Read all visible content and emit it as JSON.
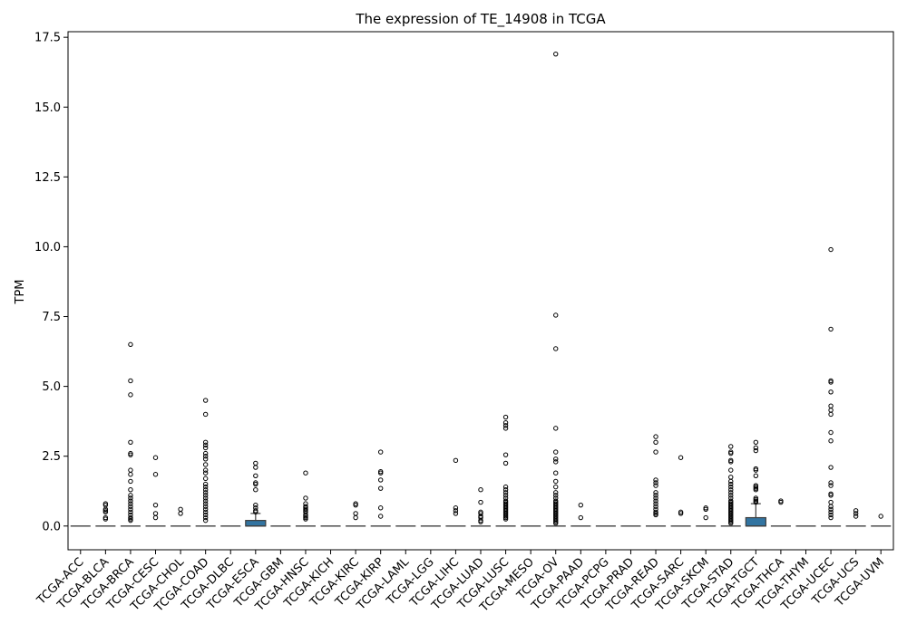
{
  "chart_data": {
    "type": "box",
    "title": "The expression of TE_14908 in TCGA",
    "xlabel": "",
    "ylabel": "TPM",
    "ylim": [
      -0.85,
      17.7
    ],
    "yticks": [
      0.0,
      2.5,
      5.0,
      7.5,
      10.0,
      12.5,
      15.0,
      17.5
    ],
    "ytick_labels": [
      "0.0",
      "2.5",
      "5.0",
      "7.5",
      "10.0",
      "12.5",
      "15.0",
      "17.5"
    ],
    "box_color": "#3274a1",
    "categories": [
      "TCGA-ACC",
      "TCGA-BLCA",
      "TCGA-BRCA",
      "TCGA-CESC",
      "TCGA-CHOL",
      "TCGA-COAD",
      "TCGA-DLBC",
      "TCGA-ESCA",
      "TCGA-GBM",
      "TCGA-HNSC",
      "TCGA-KICH",
      "TCGA-KIRC",
      "TCGA-KIRP",
      "TCGA-LAML",
      "TCGA-LGG",
      "TCGA-LIHC",
      "TCGA-LUAD",
      "TCGA-LUSC",
      "TCGA-MESO",
      "TCGA-OV",
      "TCGA-PAAD",
      "TCGA-PCPG",
      "TCGA-PRAD",
      "TCGA-READ",
      "TCGA-SARC",
      "TCGA-SKCM",
      "TCGA-STAD",
      "TCGA-TGCT",
      "TCGA-THCA",
      "TCGA-THYM",
      "TCGA-UCEC",
      "TCGA-UCS",
      "TCGA-UVM"
    ],
    "boxes": [
      {
        "q1": 0,
        "median": 0,
        "q3": 0,
        "whisker_low": 0,
        "whisker_high": 0,
        "outliers": []
      },
      {
        "q1": 0,
        "median": 0,
        "q3": 0,
        "whisker_low": 0,
        "whisker_high": 0,
        "outliers": [
          0.8,
          0.75,
          0.6,
          0.55,
          0.5,
          0.3,
          0.25
        ]
      },
      {
        "q1": 0,
        "median": 0,
        "q3": 0,
        "whisker_low": 0,
        "whisker_high": 0,
        "outliers": [
          6.5,
          5.2,
          4.7,
          3.0,
          2.6,
          2.55,
          2.0,
          1.85,
          1.6,
          1.3,
          1.1,
          1.0,
          0.9,
          0.8,
          0.7,
          0.6,
          0.5,
          0.4,
          0.3,
          0.25,
          0.2
        ]
      },
      {
        "q1": 0,
        "median": 0,
        "q3": 0,
        "whisker_low": 0,
        "whisker_high": 0,
        "outliers": [
          2.45,
          1.85,
          0.75,
          0.45,
          0.3
        ]
      },
      {
        "q1": 0,
        "median": 0,
        "q3": 0,
        "whisker_low": 0,
        "whisker_high": 0,
        "outliers": [
          0.6,
          0.45
        ]
      },
      {
        "q1": 0,
        "median": 0,
        "q3": 0,
        "whisker_low": 0,
        "whisker_high": 0,
        "outliers": [
          4.5,
          4.0,
          3.0,
          2.9,
          2.8,
          2.6,
          2.5,
          2.4,
          2.2,
          2.0,
          1.9,
          1.7,
          1.5,
          1.4,
          1.3,
          1.2,
          1.1,
          1.0,
          0.9,
          0.8,
          0.7,
          0.6,
          0.5,
          0.4,
          0.3,
          0.2
        ]
      },
      {
        "q1": 0,
        "median": 0,
        "q3": 0,
        "whisker_low": 0,
        "whisker_high": 0,
        "outliers": []
      },
      {
        "q1": 0,
        "median": 0,
        "q3": 0.2,
        "whisker_low": 0,
        "whisker_high": 0.45,
        "outliers": [
          2.25,
          2.1,
          1.8,
          1.55,
          1.5,
          1.3,
          0.75,
          0.65,
          0.55,
          0.5
        ]
      },
      {
        "q1": 0,
        "median": 0,
        "q3": 0,
        "whisker_low": 0,
        "whisker_high": 0,
        "outliers": []
      },
      {
        "q1": 0,
        "median": 0,
        "q3": 0,
        "whisker_low": 0,
        "whisker_high": 0,
        "outliers": [
          1.9,
          1.0,
          0.8,
          0.7,
          0.65,
          0.6,
          0.55,
          0.5,
          0.4,
          0.35,
          0.3,
          0.25
        ]
      },
      {
        "q1": 0,
        "median": 0,
        "q3": 0,
        "whisker_low": 0,
        "whisker_high": 0,
        "outliers": []
      },
      {
        "q1": 0,
        "median": 0,
        "q3": 0,
        "whisker_low": 0,
        "whisker_high": 0,
        "outliers": [
          0.8,
          0.75,
          0.45,
          0.3
        ]
      },
      {
        "q1": 0,
        "median": 0,
        "q3": 0,
        "whisker_low": 0,
        "whisker_high": 0,
        "outliers": [
          2.65,
          1.95,
          1.9,
          1.65,
          1.35,
          0.65,
          0.35
        ]
      },
      {
        "q1": 0,
        "median": 0,
        "q3": 0,
        "whisker_low": 0,
        "whisker_high": 0,
        "outliers": []
      },
      {
        "q1": 0,
        "median": 0,
        "q3": 0,
        "whisker_low": 0,
        "whisker_high": 0,
        "outliers": []
      },
      {
        "q1": 0,
        "median": 0,
        "q3": 0,
        "whisker_low": 0,
        "whisker_high": 0,
        "outliers": [
          2.35,
          0.65,
          0.55,
          0.45
        ]
      },
      {
        "q1": 0,
        "median": 0,
        "q3": 0,
        "whisker_low": 0,
        "whisker_high": 0,
        "outliers": [
          1.3,
          0.85,
          0.5,
          0.45,
          0.35,
          0.3,
          0.2,
          0.15
        ]
      },
      {
        "q1": 0,
        "median": 0,
        "q3": 0,
        "whisker_low": 0,
        "whisker_high": 0,
        "outliers": [
          3.9,
          3.7,
          3.6,
          3.5,
          2.55,
          2.25,
          1.4,
          1.3,
          1.2,
          1.1,
          1.0,
          0.9,
          0.85,
          0.8,
          0.75,
          0.7,
          0.65,
          0.6,
          0.55,
          0.5,
          0.45,
          0.4,
          0.35,
          0.3,
          0.25
        ]
      },
      {
        "q1": 0,
        "median": 0,
        "q3": 0,
        "whisker_low": 0,
        "whisker_high": 0,
        "outliers": []
      },
      {
        "q1": 0,
        "median": 0,
        "q3": 0,
        "whisker_low": 0,
        "whisker_high": 0,
        "outliers": [
          16.9,
          7.55,
          6.35,
          3.5,
          2.65,
          2.4,
          2.3,
          1.9,
          1.6,
          1.4,
          1.2,
          1.1,
          1.0,
          0.9,
          0.85,
          0.8,
          0.75,
          0.7,
          0.65,
          0.6,
          0.55,
          0.5,
          0.45,
          0.4,
          0.35,
          0.3,
          0.25,
          0.2,
          0.15,
          0.1
        ]
      },
      {
        "q1": 0,
        "median": 0,
        "q3": 0,
        "whisker_low": 0,
        "whisker_high": 0,
        "outliers": [
          0.75,
          0.3
        ]
      },
      {
        "q1": 0,
        "median": 0,
        "q3": 0,
        "whisker_low": 0,
        "whisker_high": 0,
        "outliers": []
      },
      {
        "q1": 0,
        "median": 0,
        "q3": 0,
        "whisker_low": 0,
        "whisker_high": 0,
        "outliers": []
      },
      {
        "q1": 0,
        "median": 0,
        "q3": 0,
        "whisker_low": 0,
        "whisker_high": 0,
        "outliers": [
          3.2,
          3.0,
          2.65,
          1.65,
          1.55,
          1.45,
          1.2,
          1.1,
          1.0,
          0.9,
          0.8,
          0.7,
          0.6,
          0.5,
          0.45,
          0.4
        ]
      },
      {
        "q1": 0,
        "median": 0,
        "q3": 0,
        "whisker_low": 0,
        "whisker_high": 0,
        "outliers": [
          2.45,
          0.5,
          0.45
        ]
      },
      {
        "q1": 0,
        "median": 0,
        "q3": 0,
        "whisker_low": 0,
        "whisker_high": 0,
        "outliers": [
          0.65,
          0.6,
          0.3
        ]
      },
      {
        "q1": 0,
        "median": 0,
        "q3": 0,
        "whisker_low": 0,
        "whisker_high": 0,
        "outliers": [
          2.85,
          2.65,
          2.6,
          2.35,
          2.3,
          2.0,
          1.75,
          1.6,
          1.5,
          1.4,
          1.3,
          1.2,
          1.1,
          1.0,
          0.9,
          0.85,
          0.8,
          0.75,
          0.7,
          0.65,
          0.6,
          0.55,
          0.5,
          0.45,
          0.4,
          0.35,
          0.3,
          0.25,
          0.2,
          0.15,
          0.1
        ]
      },
      {
        "q1": 0,
        "median": 0,
        "q3": 0.3,
        "whisker_low": 0,
        "whisker_high": 0.8,
        "outliers": [
          3.0,
          2.8,
          2.7,
          2.05,
          2.0,
          1.8,
          1.45,
          1.4,
          1.35,
          1.3,
          1.0,
          0.95,
          0.9,
          0.85
        ]
      },
      {
        "q1": 0,
        "median": 0,
        "q3": 0,
        "whisker_low": 0,
        "whisker_high": 0,
        "outliers": [
          0.9,
          0.85
        ]
      },
      {
        "q1": 0,
        "median": 0,
        "q3": 0,
        "whisker_low": 0,
        "whisker_high": 0,
        "outliers": []
      },
      {
        "q1": 0,
        "median": 0,
        "q3": 0,
        "whisker_low": 0,
        "whisker_high": 0,
        "outliers": [
          9.9,
          7.05,
          5.2,
          5.15,
          4.8,
          4.3,
          4.15,
          4.0,
          3.35,
          3.05,
          2.1,
          1.55,
          1.45,
          1.15,
          1.1,
          0.85,
          0.7,
          0.6,
          0.5,
          0.4,
          0.3
        ]
      },
      {
        "q1": 0,
        "median": 0,
        "q3": 0,
        "whisker_low": 0,
        "whisker_high": 0,
        "outliers": [
          0.55,
          0.45,
          0.35
        ]
      },
      {
        "q1": 0,
        "median": 0,
        "q3": 0,
        "whisker_low": 0,
        "whisker_high": 0,
        "outliers": [
          0.35
        ]
      }
    ]
  }
}
